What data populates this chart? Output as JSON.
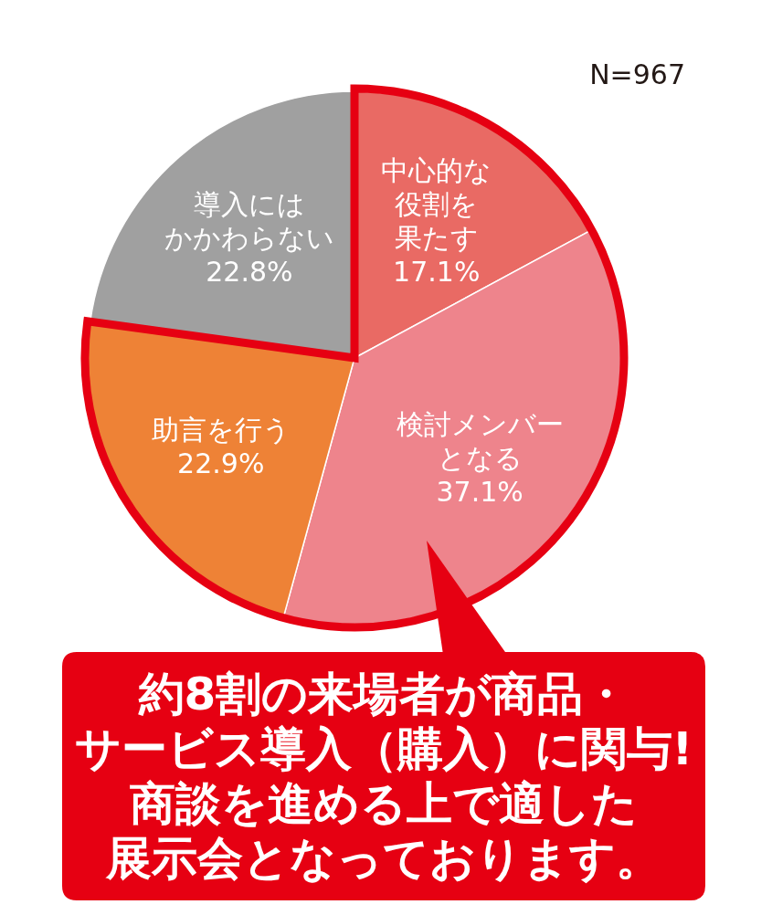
{
  "chart_data": {
    "type": "pie",
    "categories": [
      "中心的な役割を果たす",
      "検討メンバーとなる",
      "助言を行う",
      "導入にはかかわらない"
    ],
    "values": [
      17.1,
      37.1,
      22.9,
      22.8
    ],
    "colors": [
      "#e96a64",
      "#ee848c",
      "#ee8236",
      "#a0a0a0"
    ],
    "value_labels": [
      "17.1%",
      "37.1%",
      "22.9%",
      "22.8%"
    ],
    "annotations": [
      "N=967",
      "約8割の来場者が商品・サービス導入（購入）に関与!商談を進める上で適した展示会となっております。"
    ]
  }
}
